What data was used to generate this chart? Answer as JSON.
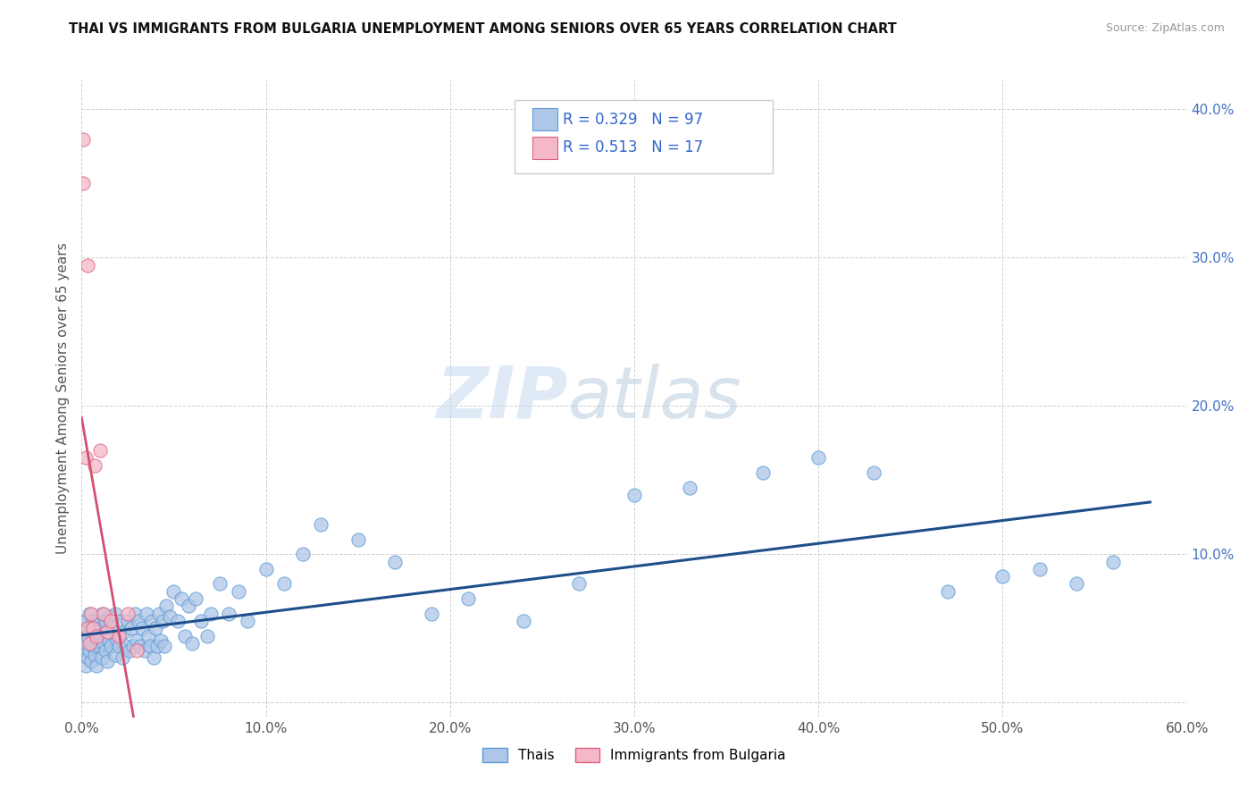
{
  "title": "THAI VS IMMIGRANTS FROM BULGARIA UNEMPLOYMENT AMONG SENIORS OVER 65 YEARS CORRELATION CHART",
  "source": "Source: ZipAtlas.com",
  "ylabel": "Unemployment Among Seniors over 65 years",
  "xlim": [
    0.0,
    0.6
  ],
  "ylim": [
    -0.01,
    0.42
  ],
  "xticks": [
    0.0,
    0.1,
    0.2,
    0.3,
    0.4,
    0.5,
    0.6
  ],
  "xticklabels": [
    "0.0%",
    "10.0%",
    "20.0%",
    "30.0%",
    "40.0%",
    "50.0%",
    "60.0%"
  ],
  "yticks": [
    0.0,
    0.1,
    0.2,
    0.3,
    0.4
  ],
  "yticklabels": [
    "",
    "10.0%",
    "20.0%",
    "30.0%",
    "40.0%"
  ],
  "thai_color": "#aec6e8",
  "thai_edge_color": "#5b9bd5",
  "bulgaria_color": "#f4b8c8",
  "bulgaria_edge_color": "#e06080",
  "thai_line_color": "#1f4e8c",
  "bulgaria_line_color": "#d45070",
  "grid_color": "#bbbbbb",
  "legend_r_thai": "R = 0.329",
  "legend_n_thai": "N = 97",
  "legend_r_bulgaria": "R = 0.513",
  "legend_n_bulgaria": "N = 17",
  "legend_label_thai": "Thais",
  "legend_label_bulgaria": "Immigrants from Bulgaria",
  "thai_scatter_x": [
    0.001,
    0.001,
    0.002,
    0.002,
    0.002,
    0.003,
    0.003,
    0.004,
    0.004,
    0.005,
    0.005,
    0.005,
    0.006,
    0.006,
    0.007,
    0.007,
    0.008,
    0.008,
    0.009,
    0.009,
    0.01,
    0.01,
    0.011,
    0.011,
    0.012,
    0.013,
    0.013,
    0.014,
    0.015,
    0.015,
    0.016,
    0.017,
    0.018,
    0.018,
    0.019,
    0.02,
    0.021,
    0.022,
    0.023,
    0.024,
    0.025,
    0.026,
    0.027,
    0.028,
    0.029,
    0.03,
    0.031,
    0.032,
    0.033,
    0.034,
    0.035,
    0.036,
    0.037,
    0.038,
    0.039,
    0.04,
    0.041,
    0.042,
    0.043,
    0.044,
    0.045,
    0.046,
    0.048,
    0.05,
    0.052,
    0.054,
    0.056,
    0.058,
    0.06,
    0.062,
    0.065,
    0.068,
    0.07,
    0.075,
    0.08,
    0.085,
    0.09,
    0.1,
    0.11,
    0.12,
    0.13,
    0.15,
    0.17,
    0.19,
    0.21,
    0.24,
    0.27,
    0.3,
    0.33,
    0.37,
    0.4,
    0.43,
    0.47,
    0.5,
    0.52,
    0.54,
    0.56
  ],
  "thai_scatter_y": [
    0.035,
    0.05,
    0.04,
    0.055,
    0.025,
    0.03,
    0.045,
    0.035,
    0.06,
    0.04,
    0.028,
    0.05,
    0.038,
    0.055,
    0.032,
    0.048,
    0.038,
    0.025,
    0.042,
    0.055,
    0.038,
    0.05,
    0.03,
    0.06,
    0.04,
    0.035,
    0.055,
    0.028,
    0.042,
    0.058,
    0.038,
    0.05,
    0.032,
    0.06,
    0.042,
    0.038,
    0.055,
    0.03,
    0.048,
    0.038,
    0.055,
    0.035,
    0.05,
    0.038,
    0.06,
    0.042,
    0.055,
    0.038,
    0.05,
    0.035,
    0.06,
    0.045,
    0.038,
    0.055,
    0.03,
    0.05,
    0.038,
    0.06,
    0.042,
    0.055,
    0.038,
    0.065,
    0.058,
    0.075,
    0.055,
    0.07,
    0.045,
    0.065,
    0.04,
    0.07,
    0.055,
    0.045,
    0.06,
    0.08,
    0.06,
    0.075,
    0.055,
    0.09,
    0.08,
    0.1,
    0.12,
    0.11,
    0.095,
    0.06,
    0.07,
    0.055,
    0.08,
    0.14,
    0.145,
    0.155,
    0.165,
    0.155,
    0.075,
    0.085,
    0.09,
    0.08,
    0.095
  ],
  "bulgaria_scatter_x": [
    0.001,
    0.001,
    0.002,
    0.003,
    0.003,
    0.004,
    0.005,
    0.006,
    0.007,
    0.008,
    0.01,
    0.012,
    0.014,
    0.016,
    0.02,
    0.025,
    0.03
  ],
  "bulgaria_scatter_y": [
    0.38,
    0.35,
    0.165,
    0.295,
    0.05,
    0.04,
    0.06,
    0.05,
    0.16,
    0.045,
    0.17,
    0.06,
    0.048,
    0.055,
    0.045,
    0.06,
    0.035
  ]
}
